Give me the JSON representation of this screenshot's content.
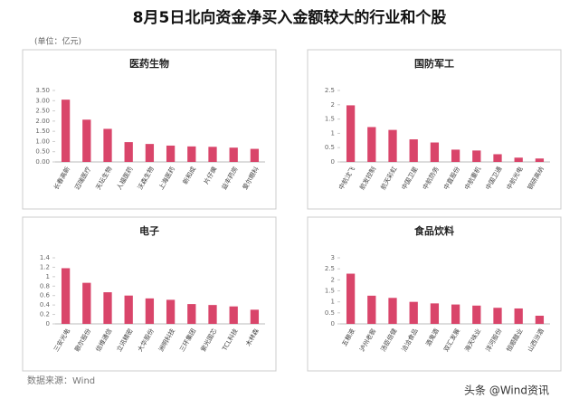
{
  "header": {
    "title": "8月5日北向资金净买入金额较大的行业和个股",
    "unit": "(单位：亿元)"
  },
  "footer": {
    "source": "数据来源：Wind",
    "watermark": "头条 @Wind资讯"
  },
  "chart_data": [
    {
      "type": "bar",
      "title": "医药生物",
      "color": "#d9456a",
      "categories": [
        "长春高新",
        "迈瑞医疗",
        "天坛生物",
        "人福医药",
        "沃森生物",
        "上海医药",
        "新和成",
        "片仔癀",
        "益丰药房",
        "爱尔眼科"
      ],
      "values": [
        3.05,
        2.07,
        1.62,
        0.97,
        0.88,
        0.8,
        0.76,
        0.74,
        0.7,
        0.64
      ],
      "ylim": [
        0,
        3.5
      ],
      "yticks": [
        {
          "value": 0,
          "label": "0.00"
        },
        {
          "value": 0.5,
          "label": "0.50"
        },
        {
          "value": 1,
          "label": "1.00"
        },
        {
          "value": 1.5,
          "label": "1.50"
        },
        {
          "value": 2,
          "label": "2.00"
        },
        {
          "value": 2.5,
          "label": "2.50"
        },
        {
          "value": 3,
          "label": "3.00"
        },
        {
          "value": 3.5,
          "label": "3.50"
        }
      ]
    },
    {
      "type": "bar",
      "title": "国防军工",
      "color": "#d9456a",
      "categories": [
        "中航沈飞",
        "航发控制",
        "航天彩虹",
        "中国卫星",
        "中航防务",
        "中直股份",
        "中航重机",
        "中国卫通",
        "中航光电",
        "钢研高纳"
      ],
      "values": [
        1.98,
        1.22,
        1.12,
        0.79,
        0.68,
        0.43,
        0.4,
        0.27,
        0.15,
        0.12
      ],
      "ylim": [
        0,
        2.5
      ],
      "yticks": [
        0,
        0.5,
        1,
        1.5,
        2,
        2.5
      ]
    },
    {
      "type": "bar",
      "title": "电子",
      "color": "#d9456a",
      "categories": [
        "三安光电",
        "歌尔股份",
        "信维通信",
        "立讯精密",
        "大华股份",
        "洲明科技",
        "三环集团",
        "紫光国芯",
        "TCL科技",
        "木林森"
      ],
      "values": [
        1.18,
        0.87,
        0.67,
        0.6,
        0.54,
        0.51,
        0.42,
        0.4,
        0.37,
        0.3
      ],
      "ylim": [
        0,
        1.4
      ],
      "yticks": [
        0,
        0.2,
        0.4,
        0.6,
        0.8,
        1,
        1.2,
        1.4
      ]
    },
    {
      "type": "bar",
      "title": "食品饮料",
      "color": "#d9456a",
      "categories": [
        "五粮液",
        "泸州老窖",
        "汤臣倍健",
        "洽洽食品",
        "酒鬼酒",
        "双汇发展",
        "海天味业",
        "洋河股份",
        "恒顺醋业",
        "山西汾酒"
      ],
      "values": [
        2.28,
        1.28,
        1.18,
        1.0,
        0.93,
        0.88,
        0.83,
        0.73,
        0.7,
        0.37
      ],
      "ylim": [
        0,
        3
      ],
      "yticks": [
        0,
        0.5,
        1,
        1.5,
        2,
        2.5,
        3
      ]
    }
  ]
}
